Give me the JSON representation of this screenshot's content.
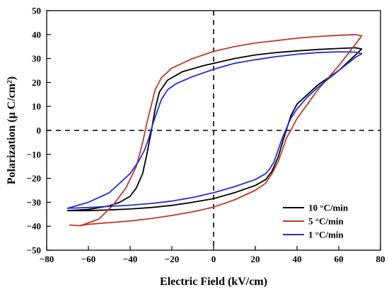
{
  "chart_data": {
    "type": "line",
    "xlabel": "Electric Field (kV/cm)",
    "ylabel": "Polarization (μ C/cm²)",
    "xlim": [
      -80,
      80
    ],
    "ylim": [
      -50,
      50
    ],
    "xticks": [
      -80,
      -60,
      -40,
      -20,
      0,
      20,
      40,
      60,
      80
    ],
    "yticks": [
      -50,
      -40,
      -30,
      -20,
      -10,
      0,
      10,
      20,
      30,
      40,
      50
    ],
    "grid": false,
    "reference_lines": "dashed lines at x=0 and y=0",
    "legend_position": "bottom-right",
    "series": [
      {
        "name": "10 °C/min",
        "color": "#000000",
        "upper_branch": [
          [
            -70,
            -33.5
          ],
          [
            -60,
            -33
          ],
          [
            -50,
            -31.5
          ],
          [
            -45,
            -30
          ],
          [
            -40,
            -27.5
          ],
          [
            -37,
            -24
          ],
          [
            -34,
            -18
          ],
          [
            -32,
            -10
          ],
          [
            -30,
            -1
          ],
          [
            -28,
            9
          ],
          [
            -26,
            16
          ],
          [
            -22,
            21
          ],
          [
            -15,
            24.5
          ],
          [
            -5,
            27
          ],
          [
            0,
            28
          ],
          [
            10,
            30
          ],
          [
            20,
            31.5
          ],
          [
            30,
            32.5
          ],
          [
            40,
            33.2
          ],
          [
            50,
            33.8
          ],
          [
            60,
            34.2
          ],
          [
            68,
            34.5
          ],
          [
            71,
            34
          ]
        ],
        "lower_branch": [
          [
            71,
            34
          ],
          [
            68,
            31.5
          ],
          [
            60,
            25
          ],
          [
            50,
            19
          ],
          [
            45,
            15
          ],
          [
            40,
            11
          ],
          [
            37,
            6
          ],
          [
            35,
            0.5
          ],
          [
            33,
            -5
          ],
          [
            31,
            -11
          ],
          [
            28,
            -17
          ],
          [
            25,
            -20.5
          ],
          [
            20,
            -23
          ],
          [
            10,
            -26
          ],
          [
            0,
            -28.5
          ],
          [
            -10,
            -30
          ],
          [
            -20,
            -31.3
          ],
          [
            -30,
            -32.2
          ],
          [
            -40,
            -32.8
          ],
          [
            -50,
            -33.2
          ],
          [
            -60,
            -33.5
          ],
          [
            -70,
            -33.5
          ]
        ]
      },
      {
        "name": "5 °C/min",
        "color": "#c0392b",
        "upper_branch": [
          [
            -69,
            -39.5
          ],
          [
            -64,
            -39.8
          ],
          [
            -55,
            -37
          ],
          [
            -48,
            -31
          ],
          [
            -42,
            -24
          ],
          [
            -37,
            -15
          ],
          [
            -34,
            -5
          ],
          [
            -32,
            3
          ],
          [
            -30,
            10
          ],
          [
            -28,
            17
          ],
          [
            -25,
            22
          ],
          [
            -20,
            26
          ],
          [
            -10,
            30
          ],
          [
            0,
            33
          ],
          [
            10,
            35
          ],
          [
            20,
            36.5
          ],
          [
            30,
            37.5
          ],
          [
            40,
            38.5
          ],
          [
            50,
            39.2
          ],
          [
            60,
            39.7
          ],
          [
            68,
            40
          ],
          [
            71,
            39.5
          ]
        ],
        "lower_branch": [
          [
            71,
            39.5
          ],
          [
            68,
            36
          ],
          [
            60,
            27
          ],
          [
            50,
            17
          ],
          [
            45,
            11
          ],
          [
            40,
            5
          ],
          [
            37,
            0
          ],
          [
            35,
            -3
          ],
          [
            33,
            -8
          ],
          [
            31,
            -13
          ],
          [
            28,
            -18
          ],
          [
            25,
            -22
          ],
          [
            20,
            -25
          ],
          [
            10,
            -29
          ],
          [
            0,
            -32
          ],
          [
            -10,
            -34
          ],
          [
            -20,
            -35.5
          ],
          [
            -30,
            -36.8
          ],
          [
            -40,
            -37.8
          ],
          [
            -50,
            -38.5
          ],
          [
            -60,
            -39.2
          ],
          [
            -64,
            -39.8
          ],
          [
            -69,
            -39.5
          ]
        ]
      },
      {
        "name": "1 °C/min",
        "color": "#1f2fd6",
        "upper_branch": [
          [
            -70,
            -32.5
          ],
          [
            -60,
            -30
          ],
          [
            -50,
            -26
          ],
          [
            -45,
            -22
          ],
          [
            -40,
            -18
          ],
          [
            -36,
            -13
          ],
          [
            -33,
            -8
          ],
          [
            -31,
            -3
          ],
          [
            -29,
            3
          ],
          [
            -27,
            8
          ],
          [
            -25,
            13
          ],
          [
            -22,
            17
          ],
          [
            -18,
            19.5
          ],
          [
            -10,
            22.5
          ],
          [
            0,
            25.5
          ],
          [
            10,
            28
          ],
          [
            20,
            29.5
          ],
          [
            30,
            30.8
          ],
          [
            40,
            31.8
          ],
          [
            50,
            32.5
          ],
          [
            60,
            32.8
          ],
          [
            68,
            32.7
          ],
          [
            71,
            32
          ]
        ],
        "lower_branch": [
          [
            71,
            32
          ],
          [
            68,
            30.5
          ],
          [
            60,
            25
          ],
          [
            50,
            18
          ],
          [
            45,
            14
          ],
          [
            40,
            9
          ],
          [
            37,
            5
          ],
          [
            35,
            1
          ],
          [
            33,
            -3
          ],
          [
            31,
            -8
          ],
          [
            29,
            -13
          ],
          [
            27,
            -16
          ],
          [
            25,
            -18
          ],
          [
            20,
            -20.5
          ],
          [
            10,
            -23.5
          ],
          [
            0,
            -26
          ],
          [
            -10,
            -28
          ],
          [
            -20,
            -29.5
          ],
          [
            -30,
            -30.5
          ],
          [
            -40,
            -31.2
          ],
          [
            -50,
            -31.7
          ],
          [
            -60,
            -32.2
          ],
          [
            -70,
            -32.5
          ]
        ]
      }
    ]
  }
}
